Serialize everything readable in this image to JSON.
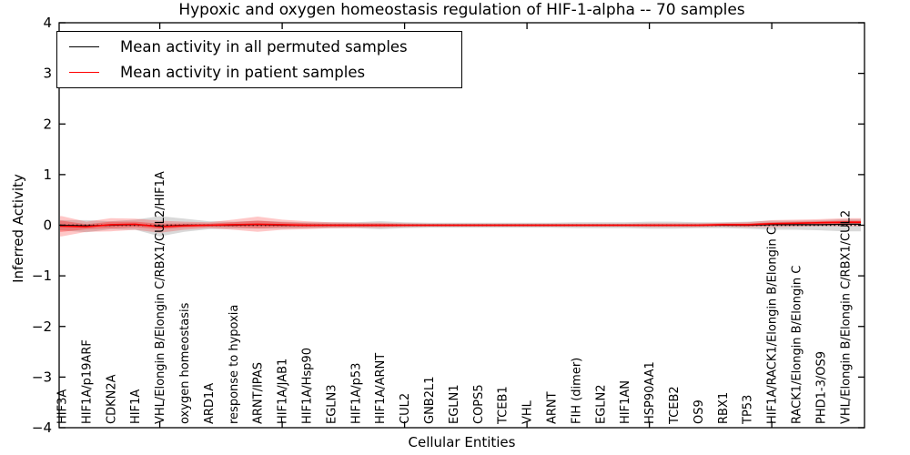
{
  "figure": {
    "title": "Hypoxic and oxygen homeostasis regulation of HIF-1-alpha -- 70 samples"
  },
  "chart_data": {
    "type": "line",
    "title": "Hypoxic and oxygen homeostasis regulation of HIF-1-alpha -- 70 samples",
    "xlabel": "Cellular Entities",
    "ylabel": "Inferred Activity",
    "ylim": [
      -4,
      4
    ],
    "grid": false,
    "legend_position": "upper left",
    "ytick_labels": [
      "4",
      "3",
      "2",
      "1",
      "0",
      "−1",
      "−2",
      "−3",
      "−4"
    ],
    "ytick_values": [
      4,
      3,
      2,
      1,
      0,
      -1,
      -2,
      -3,
      -4
    ],
    "xtick_positions": [
      5,
      10,
      15,
      20,
      25,
      30
    ],
    "zero_line": 0,
    "categories": [
      "HIF3A",
      "HIF1A/p19ARF",
      "CDKN2A",
      "HIF1A",
      "VHL/Elongin B/Elongin C/RBX1/CUL2/HIF1A",
      "oxygen homeostasis",
      "ARD1A",
      "response to hypoxia",
      "ARNT/IPAS",
      "HIF1A/JAB1",
      "HIF1A/Hsp90",
      "EGLN3",
      "HIF1A/p53",
      "HIF1A/ARNT",
      "CUL2",
      "GNB2L1",
      "EGLN1",
      "COPS5",
      "TCEB1",
      "VHL",
      "ARNT",
      "FIH (dimer)",
      "EGLN2",
      "HIF1AN",
      "HSP90AA1",
      "TCEB2",
      "OS9",
      "RBX1",
      "TP53",
      "HIF1A/RACK1/Elongin B/Elongin C",
      "RACK1/Elongin B/Elongin C",
      "PHD1-3/OS9",
      "VHL/Elongin B/Elongin C/RBX1/CUL2"
    ],
    "legend": [
      {
        "label": "Mean activity in all permuted samples",
        "color": "#000000"
      },
      {
        "label": "Mean activity in patient samples",
        "color": "#ff0000"
      }
    ],
    "series": [
      {
        "name": "Mean activity in all permuted samples",
        "color": "#000000",
        "values": [
          0.0,
          -0.01,
          0.0,
          0.01,
          -0.02,
          0.0,
          0.0,
          0.0,
          0.01,
          0.0,
          0.0,
          0.0,
          0.0,
          0.0,
          0.0,
          0.0,
          0.0,
          0.0,
          0.0,
          0.0,
          0.0,
          0.0,
          0.0,
          0.0,
          0.0,
          0.0,
          0.0,
          0.0,
          0.0,
          0.01,
          0.01,
          0.01,
          0.02
        ]
      },
      {
        "name": "Mean activity in patient samples",
        "color": "#ff0000",
        "values": [
          -0.02,
          -0.03,
          0.01,
          0.02,
          -0.03,
          -0.01,
          0.0,
          0.01,
          0.02,
          0.01,
          0.0,
          0.0,
          0.0,
          0.0,
          0.0,
          0.0,
          0.0,
          0.0,
          0.0,
          0.0,
          0.0,
          0.0,
          0.0,
          0.0,
          0.0,
          0.0,
          0.0,
          0.01,
          0.01,
          0.03,
          0.04,
          0.05,
          0.06
        ]
      }
    ],
    "bands": [
      {
        "name": "permuted-samples-spread",
        "color": "rgba(130,130,130,0.30)",
        "upper": [
          0.1,
          0.1,
          0.08,
          0.11,
          0.18,
          0.13,
          0.08,
          0.07,
          0.09,
          0.07,
          0.06,
          0.06,
          0.06,
          0.08,
          0.06,
          0.05,
          0.05,
          0.05,
          0.05,
          0.05,
          0.05,
          0.06,
          0.06,
          0.06,
          0.07,
          0.07,
          0.06,
          0.06,
          0.07,
          0.09,
          0.09,
          0.1,
          0.12
        ],
        "lower": [
          -0.1,
          -0.14,
          -0.08,
          -0.09,
          -0.22,
          -0.13,
          -0.08,
          -0.07,
          -0.07,
          -0.07,
          -0.06,
          -0.06,
          -0.06,
          -0.08,
          -0.06,
          -0.05,
          -0.05,
          -0.05,
          -0.05,
          -0.05,
          -0.05,
          -0.06,
          -0.06,
          -0.06,
          -0.07,
          -0.07,
          -0.06,
          -0.06,
          -0.07,
          -0.09,
          -0.09,
          -0.1,
          -0.12
        ]
      },
      {
        "name": "patient-samples-spread-outer",
        "color": "rgba(255,0,0,0.22)",
        "upper": [
          0.18,
          0.07,
          0.14,
          0.13,
          0.09,
          0.07,
          0.06,
          0.11,
          0.17,
          0.11,
          0.08,
          0.06,
          0.05,
          0.05,
          0.04,
          0.03,
          0.03,
          0.03,
          0.03,
          0.03,
          0.03,
          0.03,
          0.03,
          0.03,
          0.04,
          0.04,
          0.04,
          0.05,
          0.06,
          0.1,
          0.11,
          0.12,
          0.14
        ],
        "lower": [
          -0.22,
          -0.13,
          -0.12,
          -0.09,
          -0.15,
          -0.09,
          -0.06,
          -0.09,
          -0.13,
          -0.09,
          -0.08,
          -0.06,
          -0.05,
          -0.05,
          -0.04,
          -0.03,
          -0.03,
          -0.03,
          -0.03,
          -0.03,
          -0.03,
          -0.03,
          -0.03,
          -0.03,
          -0.04,
          -0.04,
          -0.04,
          -0.03,
          -0.04,
          -0.04,
          -0.03,
          -0.02,
          -0.02
        ]
      },
      {
        "name": "patient-samples-spread-inner",
        "color": "rgba(255,0,0,0.30)",
        "upper": [
          0.09,
          0.02,
          0.07,
          0.07,
          0.03,
          0.03,
          0.03,
          0.06,
          0.09,
          0.06,
          0.04,
          0.03,
          0.03,
          0.03,
          0.02,
          0.02,
          0.02,
          0.02,
          0.02,
          0.02,
          0.02,
          0.02,
          0.02,
          0.02,
          0.02,
          0.02,
          0.02,
          0.03,
          0.03,
          0.06,
          0.07,
          0.08,
          0.09
        ],
        "lower": [
          -0.13,
          -0.08,
          -0.06,
          -0.04,
          -0.08,
          -0.05,
          -0.03,
          -0.04,
          -0.06,
          -0.04,
          -0.04,
          -0.03,
          -0.03,
          -0.03,
          -0.02,
          -0.02,
          -0.02,
          -0.02,
          -0.02,
          -0.02,
          -0.02,
          -0.02,
          -0.02,
          -0.02,
          -0.02,
          -0.02,
          -0.02,
          -0.01,
          -0.02,
          0.0,
          0.01,
          0.02,
          0.02
        ]
      }
    ]
  }
}
